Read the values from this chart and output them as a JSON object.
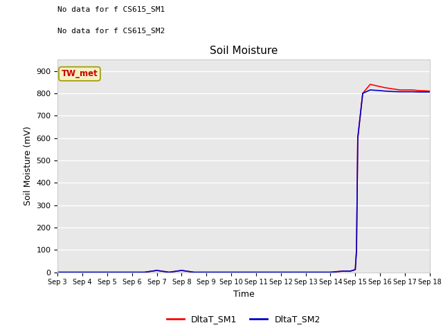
{
  "title": "Soil Moisture",
  "xlabel": "Time",
  "ylabel": "Soil Moisture (mV)",
  "ylim": [
    0,
    950
  ],
  "yticks": [
    0,
    100,
    200,
    300,
    400,
    500,
    600,
    700,
    800,
    900
  ],
  "annotation_lines": [
    "No data for f CS615_SM1",
    "No data for f CS615_SM2"
  ],
  "tw_met_label": "TW_met",
  "bg_color": "#e8e8e8",
  "fig_bg_color": "#ffffff",
  "grid_color": "#ffffff",
  "x_dates": [
    3,
    4,
    5,
    6,
    7,
    8,
    9,
    10,
    11,
    12,
    13,
    14,
    15,
    16,
    17,
    18
  ],
  "x_tick_labels": [
    "Sep 3",
    "Sep 4",
    "Sep 5",
    "Sep 6",
    "Sep 7",
    "Sep 8",
    "Sep 9",
    "Sep 10",
    "Sep 11",
    "Sep 12",
    "Sep 13",
    "Sep 14",
    "Sep 15",
    "Sep 16",
    "Sep 17",
    "Sep 18"
  ],
  "sm1_x": [
    3,
    4,
    5,
    6,
    6.5,
    7,
    7.5,
    8,
    8.5,
    9,
    9.5,
    10,
    10.5,
    11,
    11.5,
    12,
    12.5,
    13,
    13.5,
    14,
    14.5,
    14.8,
    14.9,
    15.0,
    15.05,
    15.1,
    15.3,
    15.6,
    16.0,
    16.2,
    16.5,
    16.8,
    17.0,
    17.3,
    17.6,
    18.0
  ],
  "sm1_y": [
    0,
    0,
    0,
    0,
    0,
    8,
    0,
    8,
    0,
    0,
    0,
    0,
    0,
    0,
    0,
    0,
    0,
    0,
    0,
    0,
    5,
    5,
    8,
    12,
    100,
    600,
    800,
    840,
    830,
    825,
    820,
    815,
    815,
    815,
    812,
    810
  ],
  "sm2_x": [
    3,
    4,
    5,
    6,
    6.5,
    7,
    7.5,
    8,
    8.5,
    9,
    9.5,
    10,
    10.5,
    11,
    11.5,
    12,
    12.5,
    13,
    13.5,
    14,
    14.5,
    14.8,
    14.9,
    15.0,
    15.05,
    15.1,
    15.3,
    15.6,
    16.0,
    16.2,
    16.5,
    16.8,
    17.0,
    17.3,
    17.6,
    18.0
  ],
  "sm2_y": [
    0,
    0,
    0,
    0,
    0,
    8,
    0,
    8,
    0,
    0,
    0,
    0,
    0,
    0,
    0,
    0,
    0,
    0,
    0,
    0,
    5,
    5,
    8,
    12,
    100,
    600,
    800,
    815,
    812,
    810,
    808,
    807,
    807,
    807,
    806,
    806
  ],
  "sm1_color": "#ff0000",
  "sm2_color": "#0000cc",
  "sm1_label": "DltaT_SM1",
  "sm2_label": "DltaT_SM2",
  "linewidth": 1.2
}
